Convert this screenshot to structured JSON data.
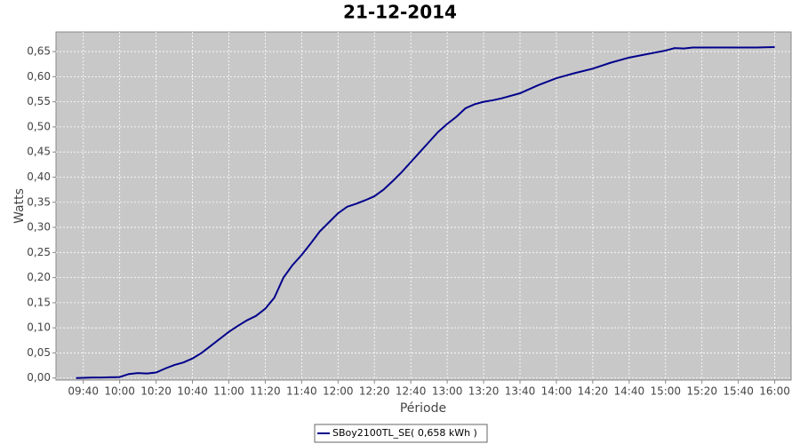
{
  "chart_data": {
    "type": "line",
    "title": "21-12-2014",
    "x_label": "Période",
    "y_label": "Watts",
    "x": [
      "09:36",
      "09:45",
      "09:50",
      "10:00",
      "10:05",
      "10:10",
      "10:15",
      "10:20",
      "10:25",
      "10:30",
      "10:35",
      "10:40",
      "10:45",
      "10:50",
      "10:55",
      "11:00",
      "11:05",
      "11:10",
      "11:15",
      "11:20",
      "11:25",
      "11:30",
      "11:35",
      "11:40",
      "11:45",
      "11:50",
      "11:55",
      "12:00",
      "12:05",
      "12:10",
      "12:15",
      "12:20",
      "12:25",
      "12:30",
      "12:35",
      "12:40",
      "12:45",
      "12:50",
      "12:55",
      "13:00",
      "13:05",
      "13:10",
      "13:15",
      "13:20",
      "13:25",
      "13:30",
      "13:40",
      "13:50",
      "14:00",
      "14:10",
      "14:20",
      "14:30",
      "14:40",
      "14:50",
      "15:00",
      "15:05",
      "15:10",
      "15:15",
      "15:20",
      "15:30",
      "15:40",
      "15:50",
      "16:00"
    ],
    "series": [
      {
        "name": "SBoy2100TL_SE( 0,658 kWh )",
        "color": "#00008b",
        "values": [
          0,
          0.001,
          0.001,
          0.002,
          0.008,
          0.01,
          0.009,
          0.011,
          0.019,
          0.026,
          0.031,
          0.039,
          0.05,
          0.064,
          0.078,
          0.092,
          0.104,
          0.115,
          0.124,
          0.138,
          0.16,
          0.2,
          0.225,
          0.245,
          0.268,
          0.292,
          0.31,
          0.328,
          0.341,
          0.347,
          0.354,
          0.362,
          0.375,
          0.392,
          0.41,
          0.43,
          0.45,
          0.47,
          0.49,
          0.506,
          0.52,
          0.537,
          0.545,
          0.55,
          0.553,
          0.557,
          0.567,
          0.583,
          0.597,
          0.607,
          0.616,
          0.628,
          0.638,
          0.645,
          0.652,
          0.657,
          0.656,
          0.658,
          0.658,
          0.658,
          0.658,
          0.658,
          0.659
        ]
      }
    ],
    "xlim": [
      "09:25",
      "16:09"
    ],
    "xticks": [
      "09:40",
      "10:00",
      "10:20",
      "10:40",
      "11:00",
      "11:20",
      "11:40",
      "12:00",
      "12:20",
      "12:40",
      "13:00",
      "13:20",
      "13:40",
      "14:00",
      "14:20",
      "14:40",
      "15:00",
      "15:20",
      "15:40",
      "16:00"
    ],
    "ylim": [
      -0.004,
      0.689
    ],
    "yticks": [
      {
        "value": 0,
        "label": "0,00"
      },
      {
        "value": 0.05,
        "label": "0,05"
      },
      {
        "value": 0.1,
        "label": "0,10"
      },
      {
        "value": 0.15,
        "label": "0,15"
      },
      {
        "value": 0.2,
        "label": "0,20"
      },
      {
        "value": 0.25,
        "label": "0,25"
      },
      {
        "value": 0.3,
        "label": "0,30"
      },
      {
        "value": 0.35,
        "label": "0,35"
      },
      {
        "value": 0.4,
        "label": "0,40"
      },
      {
        "value": 0.45,
        "label": "0,45"
      },
      {
        "value": 0.5,
        "label": "0,50"
      },
      {
        "value": 0.55,
        "label": "0,55"
      },
      {
        "value": 0.6,
        "label": "0,60"
      },
      {
        "value": 0.65,
        "label": "0,65"
      }
    ],
    "grid": true
  }
}
